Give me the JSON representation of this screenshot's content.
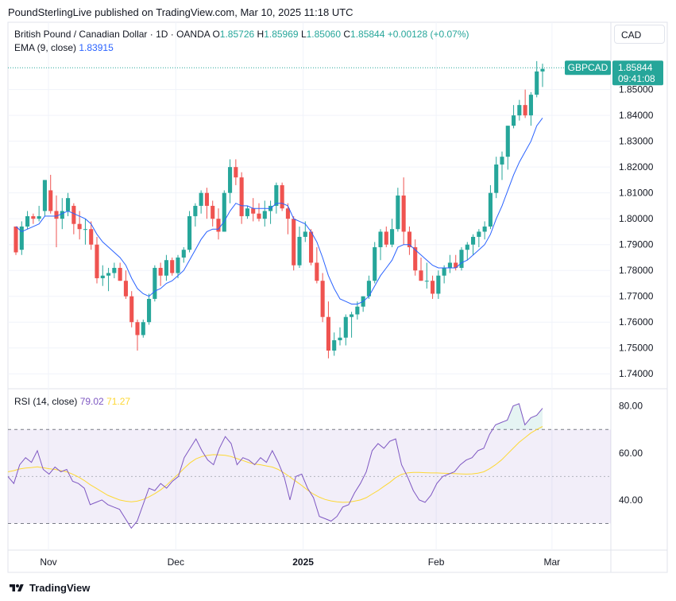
{
  "header": {
    "publisher_line": "PoundSterlingLive published on TradingView.com, Mar 10, 2025 11:18 UTC"
  },
  "currency_button": "CAD",
  "legend": {
    "symbol_title": "British Pound / Canadian Dollar · 1D · OANDA",
    "o_label": "O",
    "o_value": "1.85726",
    "h_label": "H",
    "h_value": "1.85969",
    "l_label": "L",
    "l_value": "1.85060",
    "c_label": "C",
    "c_value": "1.85844",
    "change": "+0.00128 (+0.07%)",
    "ema_label": "EMA (9, close)",
    "ema_value": "1.83915",
    "rsi_label": "RSI (14, close)",
    "rsi_value": "79.02",
    "rsi_ma_value": "71.27"
  },
  "price_tag": {
    "symbol": "GBPCAD",
    "price": "1.85844",
    "countdown": "09:41:08"
  },
  "footer": {
    "brand": "TradingView"
  },
  "colors": {
    "up": "#26a69a",
    "down": "#ef5350",
    "ema": "#2962ff",
    "rsi": "#7e57c2",
    "rsi_ma": "#fdd835",
    "rsi_band": "#ede7f6"
  },
  "chart_data": [
    {
      "type": "candlestick",
      "title": "British Pound / Canadian Dollar · 1D · OANDA",
      "y_ticks": [
        "1.74000",
        "1.75000",
        "1.76000",
        "1.77000",
        "1.78000",
        "1.79000",
        "1.80000",
        "1.81000",
        "1.82000",
        "1.83000",
        "1.84000",
        "1.85000"
      ],
      "x_ticks": [
        "Nov",
        "Dec",
        "2025",
        "Feb",
        "Mar"
      ],
      "ylim": [
        1.737,
        1.8625
      ],
      "grid": true,
      "candles_ohlc": [
        [
          1.797,
          1.796,
          1.786,
          1.787
        ],
        [
          1.788,
          1.799,
          1.786,
          1.797
        ],
        [
          1.797,
          1.803,
          1.796,
          1.801
        ],
        [
          1.801,
          1.802,
          1.798,
          1.8
        ],
        [
          1.8,
          1.805,
          1.799,
          1.801
        ],
        [
          1.803,
          1.815,
          1.801,
          1.815
        ],
        [
          1.811,
          1.817,
          1.802,
          1.803
        ],
        [
          1.803,
          1.809,
          1.789,
          1.8
        ],
        [
          1.8,
          1.808,
          1.796,
          1.803
        ],
        [
          1.803,
          1.81,
          1.801,
          1.808
        ],
        [
          1.805,
          1.806,
          1.794,
          1.798
        ],
        [
          1.798,
          1.803,
          1.792,
          1.796
        ],
        [
          1.796,
          1.8,
          1.79,
          1.796
        ],
        [
          1.796,
          1.799,
          1.788,
          1.79
        ],
        [
          1.79,
          1.793,
          1.775,
          1.777
        ],
        [
          1.777,
          1.782,
          1.774,
          1.778
        ],
        [
          1.778,
          1.781,
          1.772,
          1.779
        ],
        [
          1.779,
          1.783,
          1.777,
          1.781
        ],
        [
          1.781,
          1.783,
          1.776,
          1.776
        ],
        [
          1.776,
          1.78,
          1.769,
          1.77
        ],
        [
          1.77,
          1.772,
          1.758,
          1.76
        ],
        [
          1.76,
          1.761,
          1.749,
          1.755
        ],
        [
          1.755,
          1.761,
          1.754,
          1.76
        ],
        [
          1.76,
          1.771,
          1.759,
          1.769
        ],
        [
          1.769,
          1.782,
          1.768,
          1.781
        ],
        [
          1.781,
          1.783,
          1.774,
          1.778
        ],
        [
          1.778,
          1.786,
          1.776,
          1.784
        ],
        [
          1.784,
          1.785,
          1.778,
          1.779
        ],
        [
          1.779,
          1.786,
          1.777,
          1.785
        ],
        [
          1.785,
          1.789,
          1.783,
          1.788
        ],
        [
          1.788,
          1.803,
          1.787,
          1.801
        ],
        [
          1.801,
          1.806,
          1.797,
          1.805
        ],
        [
          1.805,
          1.811,
          1.802,
          1.81
        ],
        [
          1.81,
          1.812,
          1.8,
          1.805
        ],
        [
          1.805,
          1.807,
          1.797,
          1.8
        ],
        [
          1.8,
          1.804,
          1.792,
          1.795
        ],
        [
          1.795,
          1.811,
          1.795,
          1.81
        ],
        [
          1.81,
          1.823,
          1.806,
          1.82
        ],
        [
          1.82,
          1.823,
          1.813,
          1.816
        ],
        [
          1.816,
          1.818,
          1.798,
          1.801
        ],
        [
          1.801,
          1.805,
          1.8,
          1.804
        ],
        [
          1.804,
          1.808,
          1.799,
          1.802
        ],
        [
          1.802,
          1.806,
          1.799,
          1.8
        ],
        [
          1.8,
          1.807,
          1.797,
          1.803
        ],
        [
          1.803,
          1.807,
          1.798,
          1.805
        ],
        [
          1.805,
          1.814,
          1.802,
          1.813
        ],
        [
          1.813,
          1.814,
          1.803,
          1.804
        ],
        [
          1.804,
          1.806,
          1.794,
          1.8
        ],
        [
          1.8,
          1.801,
          1.78,
          1.782
        ],
        [
          1.782,
          1.797,
          1.781,
          1.793
        ],
        [
          1.793,
          1.799,
          1.791,
          1.795
        ],
        [
          1.795,
          1.796,
          1.782,
          1.783
        ],
        [
          1.783,
          1.789,
          1.775,
          1.776
        ],
        [
          1.776,
          1.779,
          1.76,
          1.762
        ],
        [
          1.762,
          1.768,
          1.746,
          1.749
        ],
        [
          1.749,
          1.756,
          1.747,
          1.753
        ],
        [
          1.753,
          1.758,
          1.751,
          1.754
        ],
        [
          1.754,
          1.763,
          1.751,
          1.762
        ],
        [
          1.762,
          1.764,
          1.754,
          1.763
        ],
        [
          1.763,
          1.768,
          1.761,
          1.766
        ],
        [
          1.766,
          1.77,
          1.764,
          1.77
        ],
        [
          1.77,
          1.778,
          1.769,
          1.776
        ],
        [
          1.776,
          1.791,
          1.775,
          1.789
        ],
        [
          1.789,
          1.796,
          1.784,
          1.795
        ],
        [
          1.795,
          1.797,
          1.789,
          1.79
        ],
        [
          1.79,
          1.8,
          1.789,
          1.796
        ],
        [
          1.796,
          1.812,
          1.795,
          1.809
        ],
        [
          1.809,
          1.816,
          1.79,
          1.795
        ],
        [
          1.795,
          1.797,
          1.786,
          1.789
        ],
        [
          1.789,
          1.792,
          1.778,
          1.78
        ],
        [
          1.78,
          1.785,
          1.776,
          1.776
        ],
        [
          1.776,
          1.783,
          1.773,
          1.776
        ],
        [
          1.776,
          1.778,
          1.769,
          1.771
        ],
        [
          1.771,
          1.78,
          1.769,
          1.778
        ],
        [
          1.778,
          1.782,
          1.775,
          1.781
        ],
        [
          1.781,
          1.786,
          1.779,
          1.783
        ],
        [
          1.783,
          1.786,
          1.78,
          1.781
        ],
        [
          1.781,
          1.789,
          1.78,
          1.788
        ],
        [
          1.788,
          1.791,
          1.784,
          1.79
        ],
        [
          1.79,
          1.794,
          1.786,
          1.793
        ],
        [
          1.793,
          1.796,
          1.789,
          1.795
        ],
        [
          1.795,
          1.799,
          1.792,
          1.797
        ],
        [
          1.797,
          1.813,
          1.796,
          1.81
        ],
        [
          1.81,
          1.824,
          1.808,
          1.821
        ],
        [
          1.821,
          1.826,
          1.815,
          1.824
        ],
        [
          1.824,
          1.836,
          1.819,
          1.836
        ],
        [
          1.836,
          1.844,
          1.835,
          1.84
        ],
        [
          1.84,
          1.846,
          1.838,
          1.844
        ],
        [
          1.844,
          1.85,
          1.839,
          1.84
        ],
        [
          1.84,
          1.849,
          1.836,
          1.848
        ],
        [
          1.848,
          1.861,
          1.847,
          1.857
        ],
        [
          1.857,
          1.86,
          1.851,
          1.858
        ]
      ],
      "ema": [
        1.797,
        1.795,
        1.796,
        1.797,
        1.798,
        1.801,
        1.801,
        1.801,
        1.802,
        1.803,
        1.802,
        1.801,
        1.8,
        1.798,
        1.794,
        1.791,
        1.789,
        1.787,
        1.785,
        1.782,
        1.777,
        1.773,
        1.771,
        1.77,
        1.772,
        1.773,
        1.775,
        1.776,
        1.778,
        1.78,
        1.784,
        1.788,
        1.792,
        1.795,
        1.796,
        1.796,
        1.799,
        1.803,
        1.806,
        1.805,
        1.805,
        1.804,
        1.804,
        1.804,
        1.804,
        1.806,
        1.806,
        1.805,
        1.8,
        1.799,
        1.798,
        1.795,
        1.791,
        1.785,
        1.778,
        1.773,
        1.769,
        1.768,
        1.767,
        1.767,
        1.768,
        1.77,
        1.774,
        1.778,
        1.781,
        1.784,
        1.789,
        1.79,
        1.79,
        1.788,
        1.786,
        1.784,
        1.782,
        1.781,
        1.781,
        1.781,
        1.781,
        1.783,
        1.784,
        1.786,
        1.788,
        1.79,
        1.794,
        1.8,
        1.805,
        1.811,
        1.817,
        1.822,
        1.826,
        1.83,
        1.836,
        1.839
      ]
    },
    {
      "type": "line",
      "title": "RSI (14, close)",
      "y_ticks": [
        "40.00",
        "60.00",
        "80.00"
      ],
      "ylim": [
        20,
        86
      ],
      "band": [
        30,
        70
      ],
      "midline": 50,
      "series": [
        {
          "name": "RSI (14, close)",
          "values": [
            50,
            47,
            55,
            58,
            56,
            61,
            53,
            51,
            54,
            52,
            53,
            48,
            47,
            45,
            38,
            39,
            40,
            38,
            37,
            36,
            32,
            28,
            31,
            38,
            45,
            44,
            47,
            45,
            48,
            50,
            58,
            62,
            66,
            61,
            57,
            55,
            62,
            67,
            64,
            55,
            58,
            57,
            55,
            58,
            56,
            61,
            56,
            50,
            40,
            50,
            51,
            45,
            41,
            33,
            32,
            31,
            33,
            37,
            38,
            43,
            47,
            52,
            61,
            64,
            62,
            65,
            66,
            55,
            50,
            44,
            40,
            39,
            42,
            47,
            50,
            51,
            52,
            55,
            57,
            58,
            61,
            62,
            68,
            72,
            73,
            74,
            80,
            81,
            72,
            75,
            76,
            79.02
          ]
        },
        {
          "name": "RSI-based MA",
          "values": [
            52.0,
            52.5,
            53.2,
            53.6,
            53.8,
            54.1,
            53.7,
            53.3,
            53.0,
            52.5,
            52.0,
            51.0,
            49.8,
            48.3,
            46.5,
            45.0,
            43.5,
            42.0,
            41.0,
            40.0,
            39.5,
            39.2,
            39.5,
            40.2,
            41.3,
            42.7,
            44.3,
            46.3,
            48.7,
            51.0,
            53.5,
            55.8,
            57.5,
            58.5,
            59.0,
            59.3,
            59.2,
            59.0,
            58.5,
            57.6,
            56.8,
            55.9,
            55.3,
            55.0,
            54.5,
            54.0,
            53.0,
            51.5,
            49.8,
            48.0,
            46.2,
            44.2,
            42.5,
            41.2,
            40.2,
            39.6,
            39.2,
            39.0,
            39.1,
            39.5,
            40.0,
            41.0,
            42.5,
            44.0,
            45.8,
            47.5,
            49.5,
            50.9,
            51.5,
            51.7,
            51.7,
            51.6,
            51.5,
            51.5,
            51.4,
            51.3,
            51.2,
            51.1,
            51.0,
            51.1,
            51.4,
            52.0,
            53.3,
            55.0,
            57.0,
            59.5,
            62.0,
            64.5,
            66.5,
            68.5,
            70.0,
            71.27
          ]
        }
      ]
    }
  ]
}
